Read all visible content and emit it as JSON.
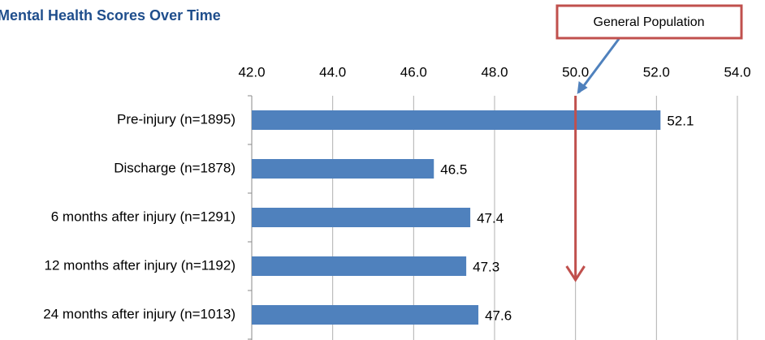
{
  "chart_data": {
    "type": "bar",
    "orientation": "horizontal",
    "title": "Mental Health Scores Over Time",
    "categories": [
      "Pre-injury (n=1895)",
      "Discharge (n=1878)",
      "6 months after injury (n=1291)",
      "12 months after injury (n=1192)",
      "24 months after injury (n=1013)"
    ],
    "values": [
      52.1,
      46.5,
      47.4,
      47.3,
      47.6
    ],
    "color": "#4f81bd",
    "xlim": [
      42,
      54
    ],
    "xticks": [
      {
        "value": 42,
        "label": "42.0"
      },
      {
        "value": 44,
        "label": "44.0"
      },
      {
        "value": 46,
        "label": "46.0"
      },
      {
        "value": 48,
        "label": "48.0"
      },
      {
        "value": 50,
        "label": "50.0"
      },
      {
        "value": 52,
        "label": "52.0"
      },
      {
        "value": 54,
        "label": "54.0"
      }
    ],
    "grid": true,
    "annotation": {
      "text": "General Population",
      "value": 50
    }
  }
}
